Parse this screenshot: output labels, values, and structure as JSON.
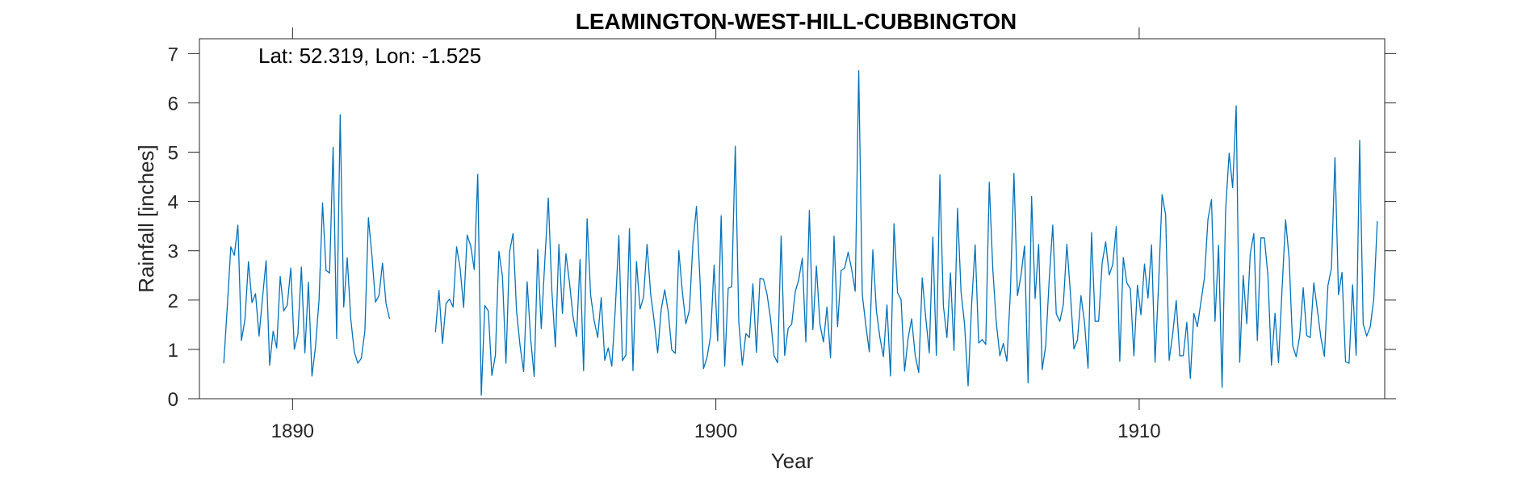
{
  "chart_data": {
    "type": "line",
    "title": "LEAMINGTON-WEST-HILL-CUBBINGTON",
    "annotation": "Lat: 52.319, Lon: -1.525",
    "xlabel": "Year",
    "ylabel": "Rainfall [inches]",
    "xlim": [
      1887.8,
      1915.8
    ],
    "ylim": [
      0,
      7.3
    ],
    "xticks": [
      1890,
      1900,
      1910
    ],
    "yticks": [
      0,
      1,
      2,
      3,
      4,
      5,
      6,
      7
    ],
    "grid": false,
    "line_color": "#0072BD",
    "series": [
      {
        "x_start": 1888.375,
        "x_step": 0.0833333,
        "values": [
          0.72,
          1.87,
          3.08,
          2.91,
          3.52,
          1.18,
          1.6,
          2.78,
          1.95,
          2.13,
          1.27,
          2.06,
          2.8,
          0.68,
          1.37,
          1.03,
          2.48,
          1.78,
          1.9,
          2.65,
          1.0,
          1.3,
          2.67,
          0.93,
          2.36,
          0.46,
          1.05,
          2.0,
          3.97,
          2.6,
          2.55,
          5.1,
          1.22,
          5.76,
          1.86,
          2.86,
          1.62,
          0.95,
          0.72,
          0.82,
          1.37,
          3.67,
          2.9,
          1.96,
          2.09,
          2.75,
          1.93,
          1.62,
          null,
          null,
          null,
          null,
          null,
          null,
          null,
          null,
          null,
          null,
          null,
          null,
          1.35,
          2.2,
          1.12,
          1.93,
          2.02,
          1.86,
          3.08,
          2.65,
          1.85,
          3.32,
          3.1,
          2.62,
          4.55,
          0.07,
          1.89,
          1.78,
          0.47,
          0.88,
          2.99,
          2.48,
          0.72,
          2.97,
          3.35,
          1.77,
          1.07,
          0.55,
          2.37,
          1.21,
          0.45,
          3.03,
          1.42,
          2.78,
          4.07,
          2.2,
          1.05,
          3.13,
          1.73,
          2.94,
          2.36,
          1.67,
          1.26,
          2.82,
          0.57,
          3.65,
          2.1,
          1.58,
          1.24,
          2.05,
          0.78,
          1.03,
          0.66,
          1.84,
          3.31,
          0.77,
          0.89,
          3.45,
          0.57,
          2.78,
          1.82,
          2.06,
          3.13,
          2.13,
          1.58,
          0.93,
          1.81,
          2.21,
          1.76,
          0.99,
          0.92,
          3.0,
          2.17,
          1.52,
          1.8,
          3.15,
          3.9,
          2.4,
          0.61,
          0.84,
          1.27,
          2.71,
          1.17,
          3.71,
          0.66,
          2.24,
          2.27,
          5.12,
          1.55,
          0.68,
          1.32,
          1.24,
          2.33,
          0.94,
          2.44,
          2.42,
          2.12,
          1.62,
          0.87,
          0.73,
          3.3,
          0.88,
          1.43,
          1.51,
          2.17,
          2.42,
          2.85,
          1.15,
          3.82,
          1.4,
          2.69,
          1.51,
          1.15,
          1.86,
          0.83,
          3.3,
          1.46,
          2.6,
          2.65,
          2.97,
          2.62,
          2.18,
          6.65,
          2.12,
          1.49,
          0.95,
          3.02,
          1.79,
          1.24,
          0.85,
          1.9,
          0.46,
          3.55,
          2.15,
          2.01,
          0.56,
          1.23,
          1.62,
          0.88,
          0.53,
          2.45,
          1.64,
          0.93,
          3.28,
          0.88,
          4.54,
          1.88,
          1.24,
          2.55,
          0.98,
          3.86,
          2.17,
          1.51,
          0.26,
          1.9,
          3.12,
          1.13,
          1.2,
          1.1,
          4.39,
          2.63,
          1.54,
          0.87,
          1.12,
          0.76,
          2.18,
          4.57,
          2.09,
          2.5,
          3.1,
          0.32,
          4.1,
          2.03,
          3.13,
          0.59,
          1.07,
          2.42,
          3.52,
          1.72,
          1.57,
          1.91,
          3.13,
          2.14,
          1.01,
          1.19,
          2.09,
          1.55,
          0.62,
          3.37,
          1.57,
          1.57,
          2.75,
          3.18,
          2.51,
          2.72,
          3.49,
          0.76,
          2.86,
          2.35,
          2.23,
          0.87,
          2.3,
          1.7,
          2.73,
          2.04,
          3.12,
          0.74,
          2.31,
          4.14,
          3.73,
          0.78,
          1.31,
          1.99,
          0.87,
          0.87,
          1.55,
          0.41,
          1.73,
          1.46,
          1.96,
          2.45,
          3.64,
          4.04,
          1.57,
          3.11,
          0.23,
          3.82,
          4.98,
          4.28,
          5.94,
          0.74,
          2.5,
          1.52,
          2.95,
          3.35,
          1.18,
          3.26,
          3.26,
          2.49,
          0.68,
          1.73,
          0.73,
          2.22,
          3.63,
          2.86,
          1.08,
          0.85,
          1.27,
          2.25,
          1.28,
          1.24,
          2.35,
          1.81,
          1.24,
          0.86,
          2.29,
          2.65,
          4.89,
          2.11,
          2.56,
          0.75,
          0.72,
          2.31,
          0.88,
          5.24,
          1.52,
          1.27,
          1.46,
          2.02,
          3.6
        ]
      }
    ]
  }
}
